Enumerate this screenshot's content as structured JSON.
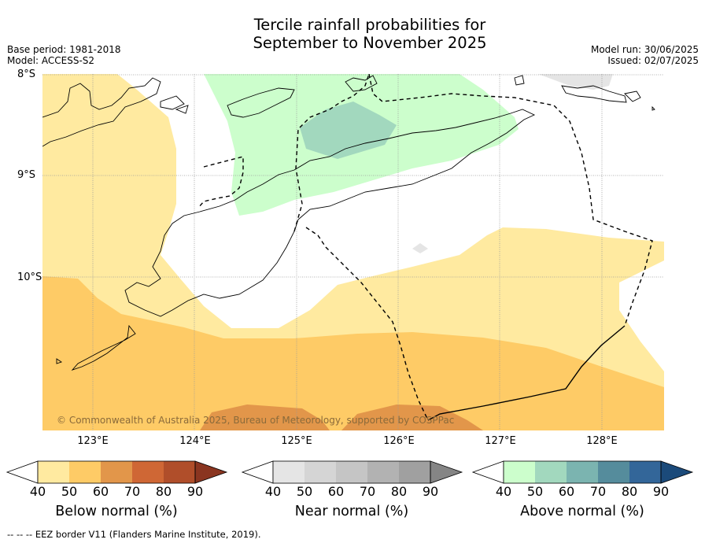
{
  "title": {
    "line1": "Tercile rainfall probabilities for",
    "line2": "September to November 2025"
  },
  "meta": {
    "base_period": "Base period: 1981-2018",
    "model": "Model: ACCESS-S2",
    "model_run": "Model run: 30/06/2025",
    "issued": "Issued: 02/07/2025"
  },
  "axes": {
    "lat_labels": [
      "8°S",
      "9°S",
      "10°S"
    ],
    "lon_labels": [
      "123°E",
      "124°E",
      "125°E",
      "126°E",
      "127°E",
      "128°E"
    ]
  },
  "copyright": "© Commonwealth of Australia 2025, Bureau of Meteorology, supported by COSPPac",
  "legends": [
    {
      "title": "Below normal (%)",
      "ticks": [
        "40",
        "50",
        "60",
        "70",
        "80",
        "90"
      ],
      "colors": [
        "#ffeaa0",
        "#fecb66",
        "#e2964a",
        "#cf6735",
        "#b04e2a",
        "#8a3520"
      ]
    },
    {
      "title": "Near normal (%)",
      "ticks": [
        "40",
        "50",
        "60",
        "70",
        "80",
        "90"
      ],
      "colors": [
        "#e5e5e5",
        "#d5d5d5",
        "#c5c5c5",
        "#b2b2b2",
        "#a0a0a0",
        "#858585"
      ]
    },
    {
      "title": "Above normal (%)",
      "ticks": [
        "40",
        "50",
        "60",
        "70",
        "80",
        "90"
      ],
      "colors": [
        "#ccfecc",
        "#a2d8be",
        "#7bb4b0",
        "#558c9c",
        "#336699",
        "#1b4a7a"
      ]
    }
  ],
  "colors": {
    "below_40": "#ffeaa0",
    "below_50": "#fecb66",
    "below_60": "#e2964a",
    "near_40": "#e5e5e5",
    "above_40": "#ccfecc",
    "above_50": "#a2d8be"
  },
  "footnote": "--  --  -- EEZ border V11 (Flanders Marine Institute, 2019)."
}
